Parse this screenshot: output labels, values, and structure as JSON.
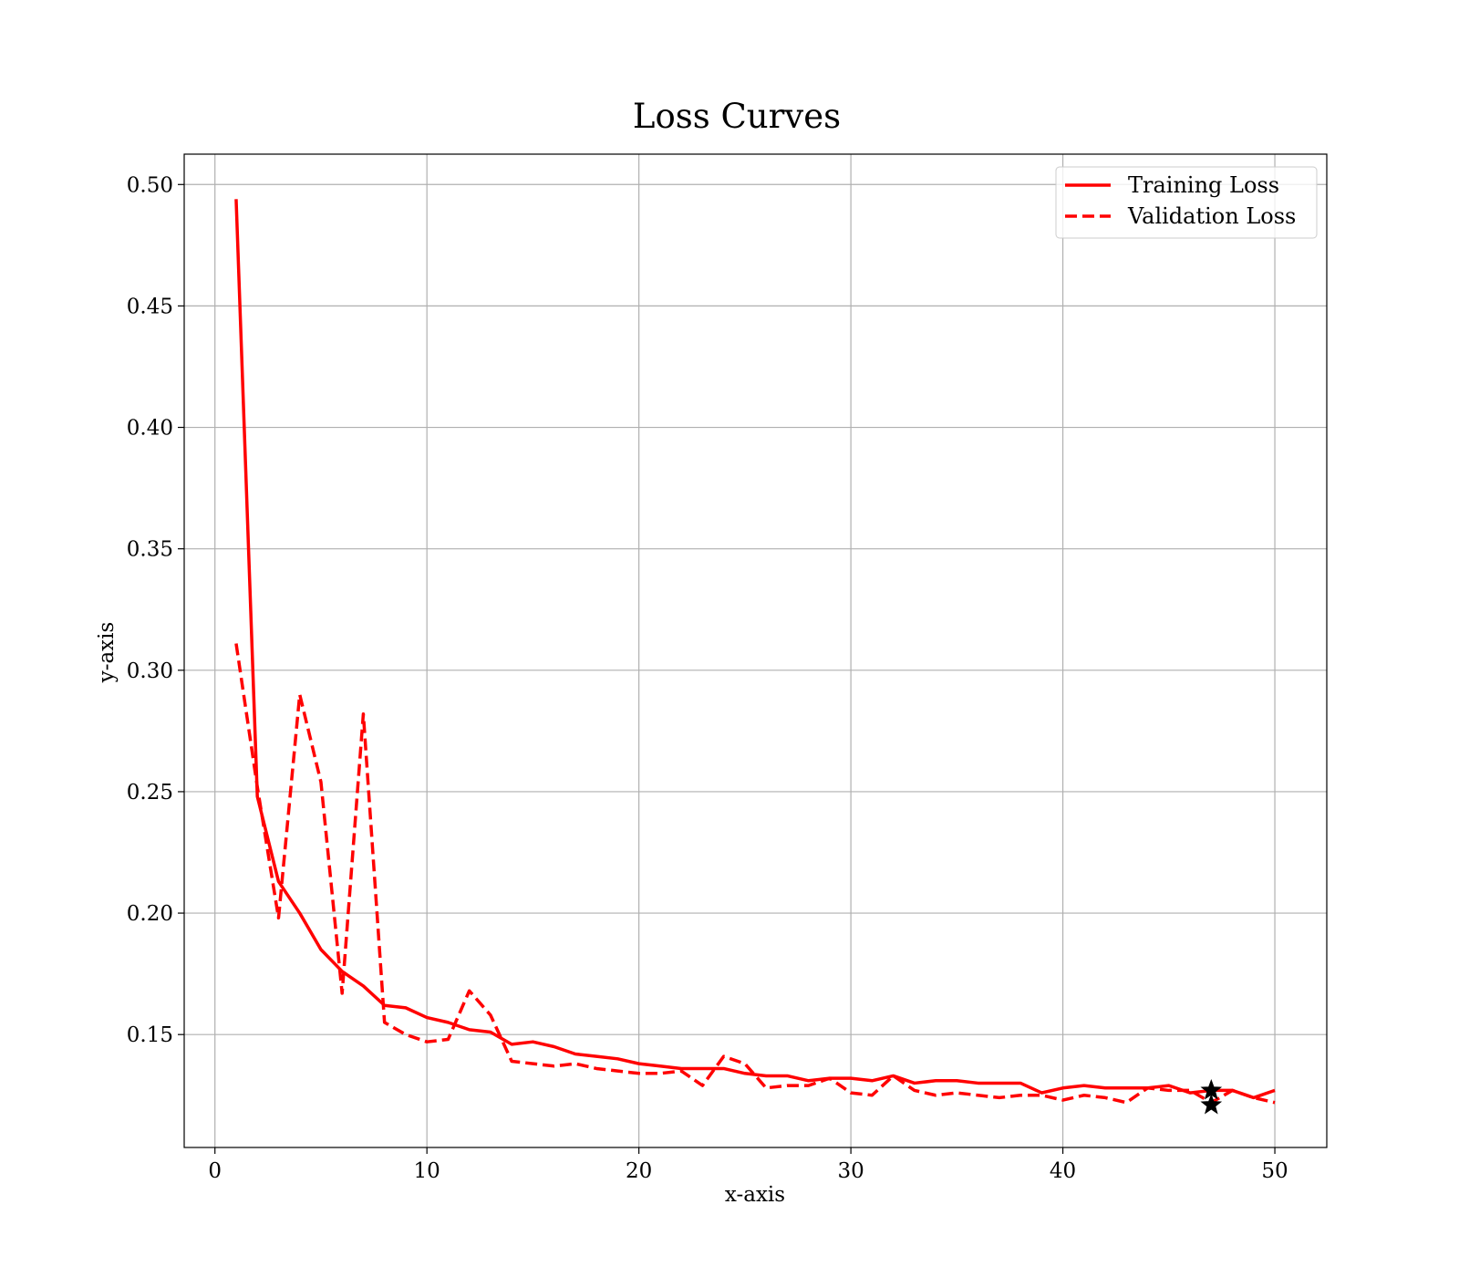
{
  "chart_data": {
    "type": "line",
    "title": "Loss Curves",
    "xlabel": "x-axis",
    "ylabel": "y-axis",
    "xlim": [
      -1.45,
      52.45
    ],
    "ylim": [
      0.1035,
      0.5125
    ],
    "xticks": [
      0,
      10,
      20,
      30,
      40,
      50
    ],
    "xtick_labels": [
      "0",
      "10",
      "20",
      "30",
      "40",
      "50"
    ],
    "yticks": [
      0.15,
      0.2,
      0.25,
      0.3,
      0.35,
      0.4,
      0.45,
      0.5
    ],
    "ytick_labels": [
      "0.15",
      "0.20",
      "0.25",
      "0.30",
      "0.35",
      "0.40",
      "0.45",
      "0.50"
    ],
    "grid": true,
    "legend_position": "top-right",
    "series": [
      {
        "name": "Training Loss",
        "color": "#ff0000",
        "style": "solid",
        "x": [
          1,
          2,
          3,
          4,
          5,
          6,
          7,
          8,
          9,
          10,
          11,
          12,
          13,
          14,
          15,
          16,
          17,
          18,
          19,
          20,
          21,
          22,
          23,
          24,
          25,
          26,
          27,
          28,
          29,
          30,
          31,
          32,
          33,
          34,
          35,
          36,
          37,
          38,
          39,
          40,
          41,
          42,
          43,
          44,
          45,
          46,
          47,
          48,
          49,
          50
        ],
        "y": [
          0.494,
          0.248,
          0.213,
          0.2,
          0.185,
          0.176,
          0.17,
          0.162,
          0.161,
          0.157,
          0.155,
          0.152,
          0.151,
          0.146,
          0.147,
          0.145,
          0.142,
          0.141,
          0.14,
          0.138,
          0.137,
          0.136,
          0.136,
          0.136,
          0.134,
          0.133,
          0.133,
          0.131,
          0.132,
          0.132,
          0.131,
          0.133,
          0.13,
          0.131,
          0.131,
          0.13,
          0.13,
          0.13,
          0.126,
          0.128,
          0.129,
          0.128,
          0.128,
          0.128,
          0.129,
          0.126,
          0.127,
          0.127,
          0.124,
          0.127
        ]
      },
      {
        "name": "Validation Loss",
        "color": "#ff0000",
        "style": "dashed",
        "x": [
          1,
          2,
          3,
          4,
          5,
          6,
          7,
          8,
          9,
          10,
          11,
          12,
          13,
          14,
          15,
          16,
          17,
          18,
          19,
          20,
          21,
          22,
          23,
          24,
          25,
          26,
          27,
          28,
          29,
          30,
          31,
          32,
          33,
          34,
          35,
          36,
          37,
          38,
          39,
          40,
          41,
          42,
          43,
          44,
          45,
          46,
          47,
          48,
          49,
          50
        ],
        "y": [
          0.311,
          0.252,
          0.198,
          0.29,
          0.254,
          0.167,
          0.282,
          0.155,
          0.15,
          0.147,
          0.148,
          0.168,
          0.158,
          0.139,
          0.138,
          0.137,
          0.138,
          0.136,
          0.135,
          0.134,
          0.134,
          0.135,
          0.129,
          0.141,
          0.138,
          0.128,
          0.129,
          0.129,
          0.132,
          0.126,
          0.125,
          0.133,
          0.127,
          0.125,
          0.126,
          0.125,
          0.124,
          0.125,
          0.125,
          0.123,
          0.125,
          0.124,
          0.122,
          0.128,
          0.127,
          0.127,
          0.122,
          0.127,
          0.124,
          0.122
        ]
      }
    ],
    "markers": [
      {
        "series": "Training Loss",
        "x": 47,
        "y": 0.127,
        "symbol": "star",
        "color": "#000000"
      },
      {
        "series": "Validation Loss",
        "x": 47,
        "y": 0.121,
        "symbol": "star",
        "color": "#000000"
      }
    ]
  }
}
